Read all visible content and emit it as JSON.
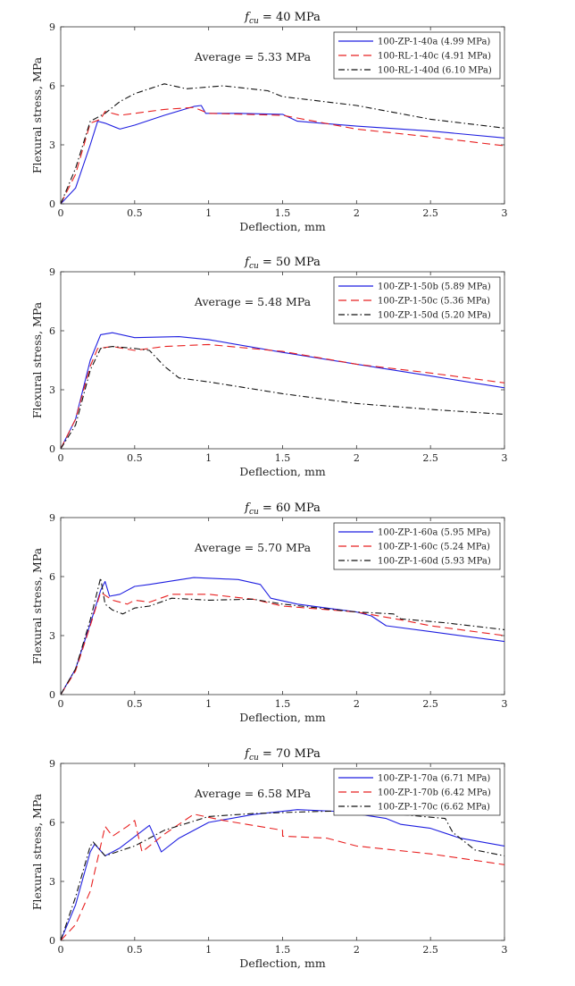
{
  "chart_data": [
    {
      "type": "line",
      "title_symbol": "f",
      "title_sub": "cu",
      "title_rest": " = 40 MPa",
      "annotation": "Average = 5.33 MPa",
      "xlabel": "Deflection, mm",
      "ylabel": "Flexural stress, MPa",
      "xlim": [
        0,
        3
      ],
      "ylim": [
        0,
        9
      ],
      "xticks": [
        "0",
        "0.5",
        "1",
        "1.5",
        "2",
        "2.5",
        "3"
      ],
      "yticks": [
        "0",
        "3",
        "6",
        "9"
      ],
      "legend_position": "top-right",
      "series": [
        {
          "name": "100-ZP-1-40a (4.99 MPa)",
          "color": "#1f1fe0",
          "style": "solid",
          "points": [
            [
              0,
              0
            ],
            [
              0.1,
              0.8
            ],
            [
              0.2,
              3
            ],
            [
              0.25,
              4.2
            ],
            [
              0.3,
              4.1
            ],
            [
              0.4,
              3.8
            ],
            [
              0.5,
              4.0
            ],
            [
              0.7,
              4.5
            ],
            [
              0.9,
              4.95
            ],
            [
              0.95,
              5.0
            ],
            [
              0.98,
              4.6
            ],
            [
              1.2,
              4.6
            ],
            [
              1.5,
              4.55
            ],
            [
              1.6,
              4.2
            ],
            [
              2,
              3.95
            ],
            [
              2.5,
              3.7
            ],
            [
              3,
              3.35
            ]
          ]
        },
        {
          "name": "100-RL-1-40c (4.91 MPa)",
          "color": "#e82020",
          "style": "dashed",
          "points": [
            [
              0,
              0
            ],
            [
              0.1,
              1.5
            ],
            [
              0.2,
              4.1
            ],
            [
              0.27,
              4.3
            ],
            [
              0.3,
              4.7
            ],
            [
              0.4,
              4.5
            ],
            [
              0.5,
              4.6
            ],
            [
              0.7,
              4.8
            ],
            [
              0.9,
              4.9
            ],
            [
              1,
              4.6
            ],
            [
              1.5,
              4.5
            ],
            [
              2,
              3.8
            ],
            [
              2.5,
              3.4
            ],
            [
              3,
              2.95
            ]
          ]
        },
        {
          "name": "100-RL-1-40d (6.10 MPa)",
          "color": "#111111",
          "style": "dashdot",
          "points": [
            [
              0,
              0
            ],
            [
              0.1,
              1.8
            ],
            [
              0.2,
              4.2
            ],
            [
              0.3,
              4.6
            ],
            [
              0.4,
              5.2
            ],
            [
              0.5,
              5.6
            ],
            [
              0.7,
              6.1
            ],
            [
              0.85,
              5.85
            ],
            [
              1.1,
              6.0
            ],
            [
              1.4,
              5.75
            ],
            [
              1.5,
              5.45
            ],
            [
              2,
              5.0
            ],
            [
              2.5,
              4.3
            ],
            [
              3,
              3.85
            ]
          ]
        }
      ]
    },
    {
      "type": "line",
      "title_symbol": "f",
      "title_sub": "cu",
      "title_rest": " = 50 MPa",
      "annotation": "Average = 5.48 MPa",
      "xlabel": "Deflection, mm",
      "ylabel": "Flexural stress, MPa",
      "xlim": [
        0,
        3
      ],
      "ylim": [
        0,
        9
      ],
      "xticks": [
        "0",
        "0.5",
        "1",
        "1.5",
        "2",
        "2.5",
        "3"
      ],
      "yticks": [
        "0",
        "3",
        "6",
        "9"
      ],
      "legend_position": "top-right",
      "series": [
        {
          "name": "100-ZP-1-50b (5.89 MPa)",
          "color": "#1f1fe0",
          "style": "solid",
          "points": [
            [
              0,
              0
            ],
            [
              0.1,
              1.5
            ],
            [
              0.2,
              4.5
            ],
            [
              0.27,
              5.8
            ],
            [
              0.35,
              5.9
            ],
            [
              0.5,
              5.65
            ],
            [
              0.8,
              5.7
            ],
            [
              1,
              5.55
            ],
            [
              1.5,
              4.9
            ],
            [
              2,
              4.3
            ],
            [
              2.5,
              3.7
            ],
            [
              3,
              3.1
            ]
          ]
        },
        {
          "name": "100-ZP-1-50c (5.36 MPa)",
          "color": "#e82020",
          "style": "dashed",
          "points": [
            [
              0,
              0
            ],
            [
              0.1,
              1.5
            ],
            [
              0.2,
              4.2
            ],
            [
              0.25,
              5.1
            ],
            [
              0.35,
              5.2
            ],
            [
              0.5,
              5.0
            ],
            [
              0.7,
              5.2
            ],
            [
              1,
              5.3
            ],
            [
              1.5,
              4.95
            ],
            [
              2,
              4.3
            ],
            [
              2.5,
              3.85
            ],
            [
              3,
              3.35
            ]
          ]
        },
        {
          "name": "100-ZP-1-50d (5.20 MPa)",
          "color": "#111111",
          "style": "dashdot",
          "points": [
            [
              0,
              0
            ],
            [
              0.1,
              1.2
            ],
            [
              0.2,
              4
            ],
            [
              0.27,
              5.1
            ],
            [
              0.35,
              5.2
            ],
            [
              0.5,
              5.1
            ],
            [
              0.6,
              5.0
            ],
            [
              0.7,
              4.2
            ],
            [
              0.8,
              3.6
            ],
            [
              1,
              3.4
            ],
            [
              1.5,
              2.8
            ],
            [
              2,
              2.3
            ],
            [
              2.5,
              2.0
            ],
            [
              3,
              1.75
            ]
          ]
        }
      ]
    },
    {
      "type": "line",
      "title_symbol": "f",
      "title_sub": "cu",
      "title_rest": " = 60 MPa",
      "annotation": "Average = 5.70 MPa",
      "xlabel": "Deflection, mm",
      "ylabel": "Flexural stress, MPa",
      "xlim": [
        0,
        3
      ],
      "ylim": [
        0,
        9
      ],
      "xticks": [
        "0",
        "0.5",
        "1",
        "1.5",
        "2",
        "2.5",
        "3"
      ],
      "yticks": [
        "0",
        "3",
        "6",
        "9"
      ],
      "legend_position": "top-right",
      "series": [
        {
          "name": "100-ZP-1-60a (5.95 MPa)",
          "color": "#1f1fe0",
          "style": "solid",
          "points": [
            [
              0,
              0
            ],
            [
              0.1,
              1.3
            ],
            [
              0.2,
              3.6
            ],
            [
              0.27,
              5.3
            ],
            [
              0.3,
              5.75
            ],
            [
              0.33,
              5.0
            ],
            [
              0.4,
              5.1
            ],
            [
              0.5,
              5.5
            ],
            [
              0.6,
              5.6
            ],
            [
              0.9,
              5.95
            ],
            [
              1.2,
              5.85
            ],
            [
              1.35,
              5.6
            ],
            [
              1.42,
              4.9
            ],
            [
              1.6,
              4.6
            ],
            [
              2,
              4.2
            ],
            [
              2.1,
              4.0
            ],
            [
              2.2,
              3.5
            ],
            [
              2.5,
              3.2
            ],
            [
              3,
              2.7
            ]
          ]
        },
        {
          "name": "100-ZP-1-60c (5.24 MPa)",
          "color": "#e82020",
          "style": "dashed",
          "points": [
            [
              0,
              0
            ],
            [
              0.1,
              1.2
            ],
            [
              0.2,
              3.5
            ],
            [
              0.27,
              5.2
            ],
            [
              0.35,
              4.8
            ],
            [
              0.45,
              4.6
            ],
            [
              0.5,
              4.8
            ],
            [
              0.6,
              4.7
            ],
            [
              0.75,
              5.1
            ],
            [
              1,
              5.1
            ],
            [
              1.3,
              4.85
            ],
            [
              1.5,
              4.5
            ],
            [
              2,
              4.2
            ],
            [
              2.3,
              3.8
            ],
            [
              2.5,
              3.5
            ],
            [
              3,
              3.0
            ]
          ]
        },
        {
          "name": "100-ZP-1-60d (5.93 MPa)",
          "color": "#111111",
          "style": "dashdot",
          "points": [
            [
              0,
              0
            ],
            [
              0.1,
              1.3
            ],
            [
              0.2,
              3.8
            ],
            [
              0.27,
              5.93
            ],
            [
              0.3,
              4.6
            ],
            [
              0.35,
              4.3
            ],
            [
              0.42,
              4.1
            ],
            [
              0.5,
              4.4
            ],
            [
              0.6,
              4.5
            ],
            [
              0.75,
              4.9
            ],
            [
              1,
              4.8
            ],
            [
              1.3,
              4.85
            ],
            [
              1.5,
              4.6
            ],
            [
              2,
              4.2
            ],
            [
              2.25,
              4.1
            ],
            [
              2.3,
              3.85
            ],
            [
              2.6,
              3.65
            ],
            [
              3,
              3.3
            ]
          ]
        }
      ]
    },
    {
      "type": "line",
      "title_symbol": "f",
      "title_sub": "cu",
      "title_rest": " = 70 MPa",
      "annotation": "Average = 6.58 MPa",
      "xlabel": "Deflection, mm",
      "ylabel": "Flexural stress, MPa",
      "xlim": [
        0,
        3
      ],
      "ylim": [
        0,
        9
      ],
      "xticks": [
        "0",
        "0.5",
        "1",
        "1.5",
        "2",
        "2.5",
        "3"
      ],
      "yticks": [
        "0",
        "3",
        "6",
        "9"
      ],
      "legend_position": "top-right",
      "series": [
        {
          "name": "100-ZP-1-70a (6.71 MPa)",
          "color": "#1f1fe0",
          "style": "solid",
          "points": [
            [
              0,
              0
            ],
            [
              0.1,
              1.8
            ],
            [
              0.2,
              4.5
            ],
            [
              0.23,
              4.9
            ],
            [
              0.3,
              4.3
            ],
            [
              0.4,
              4.7
            ],
            [
              0.6,
              5.85
            ],
            [
              0.68,
              4.5
            ],
            [
              0.8,
              5.2
            ],
            [
              1,
              6.0
            ],
            [
              1.3,
              6.4
            ],
            [
              1.6,
              6.65
            ],
            [
              1.9,
              6.55
            ],
            [
              2.2,
              6.2
            ],
            [
              2.3,
              5.9
            ],
            [
              2.5,
              5.7
            ],
            [
              2.7,
              5.2
            ],
            [
              3,
              4.8
            ]
          ]
        },
        {
          "name": "100-ZP-1-70b (6.42 MPa)",
          "color": "#e82020",
          "style": "dashed",
          "points": [
            [
              0,
              0
            ],
            [
              0.1,
              0.8
            ],
            [
              0.2,
              2.5
            ],
            [
              0.27,
              4.8
            ],
            [
              0.3,
              5.8
            ],
            [
              0.35,
              5.3
            ],
            [
              0.45,
              5.8
            ],
            [
              0.5,
              6.1
            ],
            [
              0.55,
              4.5
            ],
            [
              0.7,
              5.4
            ],
            [
              0.9,
              6.42
            ],
            [
              1.1,
              6.1
            ],
            [
              1.5,
              5.6
            ],
            [
              1.5,
              5.3
            ],
            [
              1.8,
              5.2
            ],
            [
              2,
              4.8
            ],
            [
              2.5,
              4.4
            ],
            [
              3,
              3.85
            ]
          ]
        },
        {
          "name": "100-ZP-1-70c (6.62 MPa)",
          "color": "#111111",
          "style": "dashdot",
          "points": [
            [
              0,
              0
            ],
            [
              0.1,
              2.2
            ],
            [
              0.2,
              4.8
            ],
            [
              0.22,
              5.0
            ],
            [
              0.3,
              4.3
            ],
            [
              0.5,
              4.8
            ],
            [
              0.7,
              5.6
            ],
            [
              1,
              6.3
            ],
            [
              1.3,
              6.45
            ],
            [
              1.7,
              6.55
            ],
            [
              2,
              6.6
            ],
            [
              2.6,
              6.2
            ],
            [
              2.65,
              5.5
            ],
            [
              2.8,
              4.6
            ],
            [
              3,
              4.3
            ]
          ]
        }
      ]
    }
  ]
}
